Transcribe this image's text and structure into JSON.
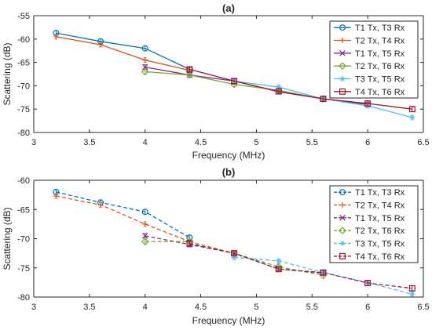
{
  "chart_data": [
    {
      "type": "line",
      "panel": "(a)",
      "title": "(a)",
      "xlabel": "Frequency (MHz)",
      "ylabel": "Scattering (dB)",
      "xlim": [
        3,
        6.5
      ],
      "ylim": [
        -80,
        -55
      ],
      "xticks": [
        "3",
        "3.5",
        "4",
        "4.5",
        "5",
        "5.5",
        "6",
        "6.5"
      ],
      "yticks": [
        "-55",
        "-60",
        "-65",
        "-70",
        "-75",
        "-80"
      ],
      "legend_position": "top-right",
      "line_style": "solid",
      "series": [
        {
          "name": "T1 Tx, T3 Rx",
          "color": "#0072BD",
          "marker": "circle",
          "x": [
            3.2,
            3.6,
            4.0,
            4.4
          ],
          "y": [
            -58.7,
            -60.5,
            -62.0,
            -66.5
          ]
        },
        {
          "name": "T2 Tx, T4 Rx",
          "color": "#D95319",
          "marker": "plus",
          "x": [
            3.2,
            3.6,
            4.0,
            4.4
          ],
          "y": [
            -59.5,
            -61.2,
            -64.5,
            -66.7
          ]
        },
        {
          "name": "T1 Tx, T5 Rx",
          "color": "#7E2F8E",
          "marker": "x",
          "x": [
            4.0,
            4.4,
            4.8,
            5.2,
            5.6,
            6.0
          ],
          "y": [
            -66.0,
            -67.7,
            -69.0,
            -71.3,
            -72.8,
            -74.0
          ]
        },
        {
          "name": "T2 Tx, T6 Rx",
          "color": "#77AC30",
          "marker": "diamond",
          "x": [
            4.0,
            4.4,
            4.8,
            5.2,
            5.6
          ],
          "y": [
            -67.0,
            -67.7,
            -69.7,
            -71.0,
            -72.8
          ]
        },
        {
          "name": "T3 Tx, T5 Rx",
          "color": "#4DBEEE",
          "marker": "asterisk",
          "x": [
            4.8,
            5.2,
            5.6,
            6.0,
            6.4
          ],
          "y": [
            -69.0,
            -70.3,
            -72.8,
            -74.3,
            -76.8
          ]
        },
        {
          "name": "T4 Tx, T6 Rx",
          "color": "#A2142F",
          "marker": "square",
          "x": [
            4.4,
            4.8,
            5.2,
            5.6,
            6.0,
            6.4
          ],
          "y": [
            -66.5,
            -69.0,
            -71.2,
            -72.8,
            -73.8,
            -75.0
          ]
        }
      ]
    },
    {
      "type": "line",
      "panel": "(b)",
      "title": "(b)",
      "xlabel": "Frequency (MHz)",
      "ylabel": "Scattering (dB)",
      "xlim": [
        3,
        6.5
      ],
      "ylim": [
        -80,
        -60
      ],
      "xticks": [
        "3",
        "3.5",
        "4",
        "4.5",
        "5",
        "5.5",
        "6",
        "6.5"
      ],
      "yticks": [
        "-60",
        "-65",
        "-70",
        "-75",
        "-80"
      ],
      "legend_position": "top-right",
      "line_style": "dashed",
      "series": [
        {
          "name": "T1 Tx, T3 Rx",
          "color": "#0072BD",
          "marker": "circle",
          "x": [
            3.2,
            3.6,
            4.0,
            4.4
          ],
          "y": [
            -62.0,
            -63.8,
            -65.4,
            -69.8
          ]
        },
        {
          "name": "T2 Tx, T4 Rx",
          "color": "#D95319",
          "marker": "plus",
          "x": [
            3.2,
            3.6,
            4.0,
            4.4
          ],
          "y": [
            -62.7,
            -64.2,
            -67.5,
            -70.5
          ]
        },
        {
          "name": "T1 Tx, T5 Rx",
          "color": "#7E2F8E",
          "marker": "x",
          "x": [
            4.0,
            4.4,
            4.8,
            5.2,
            5.6
          ],
          "y": [
            -69.5,
            -71.0,
            -72.5,
            -75.2,
            -75.9
          ]
        },
        {
          "name": "T2 Tx, T6 Rx",
          "color": "#77AC30",
          "marker": "diamond",
          "x": [
            4.0,
            4.4,
            4.8,
            5.2,
            5.6
          ],
          "y": [
            -70.5,
            -70.5,
            -72.5,
            -74.8,
            -76.3
          ]
        },
        {
          "name": "T3 Tx, T5 Rx",
          "color": "#4DBEEE",
          "marker": "asterisk",
          "x": [
            4.8,
            5.2,
            5.6,
            6.0,
            6.4
          ],
          "y": [
            -73.2,
            -73.8,
            -75.8,
            -77.5,
            -79.5
          ]
        },
        {
          "name": "T4 Tx, T6 Rx",
          "color": "#A2142F",
          "marker": "square",
          "x": [
            4.4,
            4.8,
            5.2,
            5.6,
            6.0,
            6.4
          ],
          "y": [
            -70.8,
            -72.5,
            -75.2,
            -75.8,
            -77.6,
            -78.5
          ]
        }
      ]
    }
  ]
}
